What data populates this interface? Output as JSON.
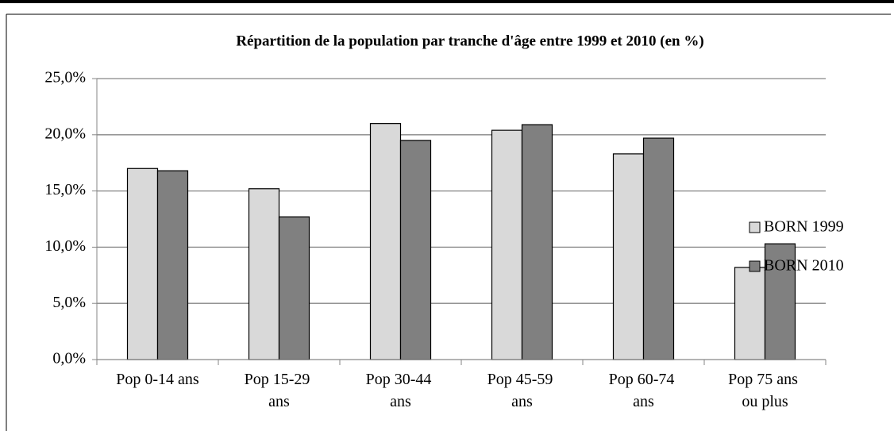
{
  "chart_data": {
    "type": "bar",
    "title": "Répartition de la population par tranche d'âge entre 1999 et 2010 (en %)",
    "categories": [
      "Pop 0-14 ans",
      "Pop 15-29 ans",
      "Pop 30-44 ans",
      "Pop 45-59 ans",
      "Pop 60-74 ans",
      "Pop 75 ans ou plus"
    ],
    "series": [
      {
        "name": "BORN 1999",
        "color": "#d9d9d9",
        "values": [
          17.0,
          15.2,
          21.0,
          20.4,
          18.3,
          8.2
        ]
      },
      {
        "name": "BORN 2010",
        "color": "#808080",
        "values": [
          16.8,
          12.7,
          19.5,
          20.9,
          19.7,
          10.3
        ]
      }
    ],
    "ylim": [
      0,
      25
    ],
    "yticks": [
      {
        "value": 0,
        "label": "0,0%"
      },
      {
        "value": 5,
        "label": "5,0%"
      },
      {
        "value": 10,
        "label": "10,0%"
      },
      {
        "value": 15,
        "label": "15,0%"
      },
      {
        "value": 20,
        "label": "20,0%"
      },
      {
        "value": 25,
        "label": "25,0%"
      }
    ],
    "grid": true,
    "legend": "right"
  }
}
